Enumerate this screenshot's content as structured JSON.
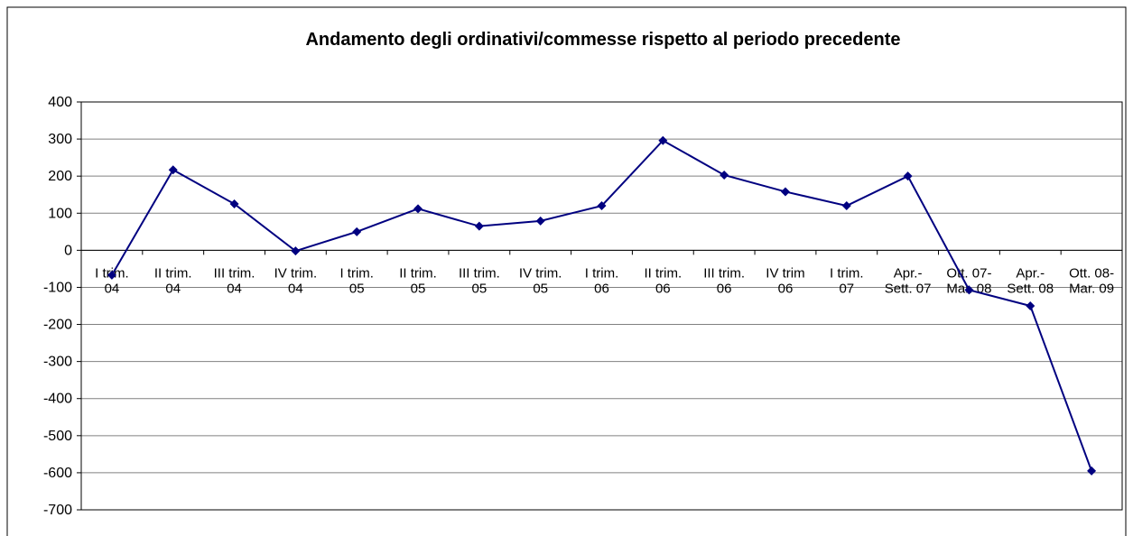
{
  "chart_data": {
    "type": "line",
    "title": "Andamento degli ordinativi/commesse rispetto al periodo precedente",
    "categories": [
      [
        "I trim.",
        "04"
      ],
      [
        "II trim.",
        "04"
      ],
      [
        "III trim.",
        "04"
      ],
      [
        "IV trim.",
        "04"
      ],
      [
        "I trim.",
        "05"
      ],
      [
        "II trim.",
        "05"
      ],
      [
        "III trim.",
        "05"
      ],
      [
        "IV trim.",
        "05"
      ],
      [
        "I trim.",
        "06"
      ],
      [
        "II trim.",
        "06"
      ],
      [
        "III trim.",
        "06"
      ],
      [
        "IV trim",
        "06"
      ],
      [
        "I trim.",
        "07"
      ],
      [
        "Apr.-",
        "Sett. 07"
      ],
      [
        "Ott. 07-",
        "Mar. 08"
      ],
      [
        "Apr.-",
        "Sett. 08"
      ],
      [
        "Ott. 08-",
        "Mar. 09"
      ]
    ],
    "series": [
      {
        "color": "#000080",
        "values": [
          -67,
          217,
          125,
          -2,
          50,
          112,
          65,
          79,
          120,
          296,
          203,
          158,
          120,
          200,
          -107,
          -150,
          -595
        ]
      }
    ],
    "ylim": [
      -700,
      400
    ],
    "yticks": [
      -700,
      -600,
      -500,
      -400,
      -300,
      -200,
      -100,
      0,
      100,
      200,
      300,
      400
    ],
    "grid": true
  }
}
